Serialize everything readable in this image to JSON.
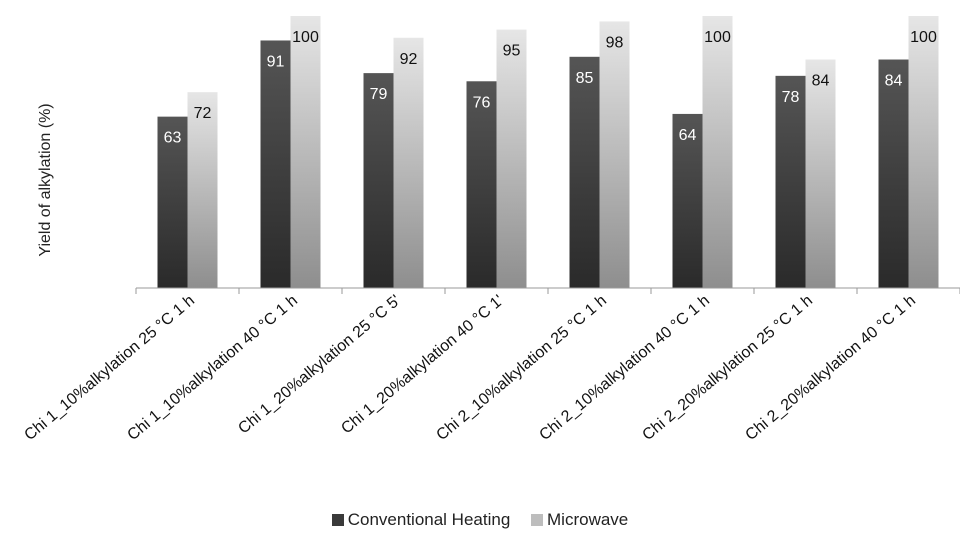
{
  "chart_data": {
    "type": "bar",
    "title": "",
    "xlabel": "",
    "ylabel": "Yield of alkylation (%)",
    "ylim": [
      0,
      100
    ],
    "grid": false,
    "legend_position": "bottom",
    "categories": [
      "Chi 1_10%alkylation 25 °C 1 h",
      "Chi 1_10%alkylation 40 °C 1 h",
      "Chi 1_20%alkylation 25 °C 5'",
      "Chi 1_20%alkylation 40 °C 1'",
      "Chi 2_10%alkylation 25 °C 1 h",
      "Chi 2_10%alkylation 40 °C 1 h",
      "Chi 2_20%alkylation 25 °C 1 h",
      "Chi 2_20%alkylation 40 °C 1 h"
    ],
    "series": [
      {
        "name": "Conventional Heating",
        "values": [
          63,
          91,
          79,
          76,
          85,
          64,
          78,
          84
        ],
        "color": "#4a4a4a"
      },
      {
        "name": "Microwave",
        "values": [
          72,
          100,
          92,
          95,
          98,
          100,
          84,
          100
        ],
        "color": "#c8c8c8"
      }
    ]
  }
}
